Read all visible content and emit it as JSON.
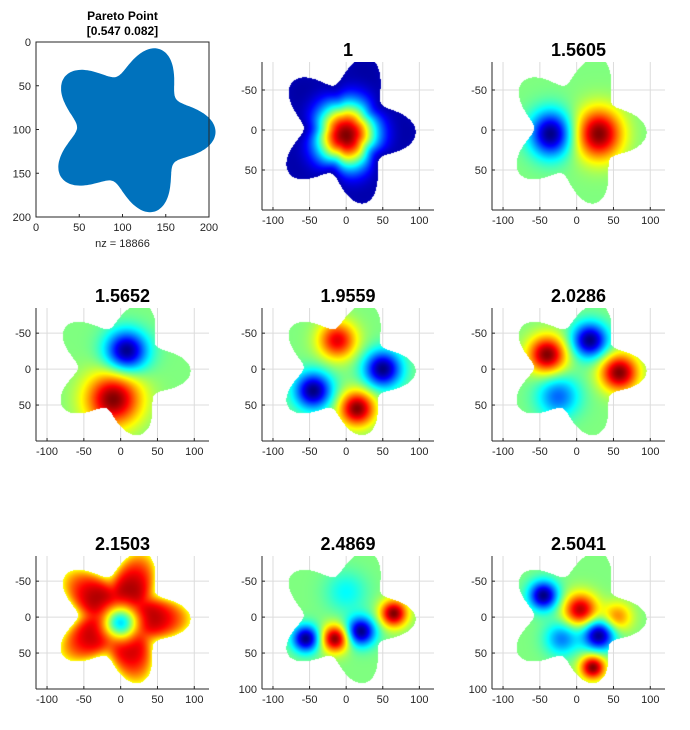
{
  "figure": {
    "background": "#ffffff",
    "axis_color": "#262626",
    "grid_color": "#dcdcdc",
    "colormap": "jet"
  },
  "chart_data": [
    {
      "type": "spy",
      "title_lines": [
        "Pareto Point",
        "[0.547 0.082]"
      ],
      "xlabel": "nz = 18866",
      "nz": 18866,
      "marker_color": "#0072BD",
      "xlim": [
        0,
        200
      ],
      "ylim": [
        0,
        200
      ],
      "y_reversed": true,
      "xticks": [
        0,
        50,
        100,
        150,
        200
      ],
      "yticks": [
        0,
        50,
        100,
        150,
        200
      ],
      "grid": false,
      "shape": {
        "type": "star",
        "arms": 5,
        "center": [
          110,
          100
        ],
        "inner_radius": 62,
        "outer_radius": 97,
        "phase_deg": 70
      }
    },
    {
      "type": "heatmap",
      "title": "1",
      "xlim": [
        -115,
        120
      ],
      "ylim": [
        -85,
        100
      ],
      "y_reversed": true,
      "xticks": [
        -100,
        -50,
        0,
        50,
        100
      ],
      "yticks": [
        -50,
        0,
        50
      ],
      "grid": true,
      "blobs": [
        {
          "x": 0,
          "y": 7,
          "s": 30,
          "v": 1
        }
      ],
      "base": 0,
      "edge_fade": true,
      "edge_value": 0.05
    },
    {
      "type": "heatmap",
      "title": "1.5605",
      "xlim": [
        -115,
        120
      ],
      "ylim": [
        -85,
        100
      ],
      "y_reversed": true,
      "xticks": [
        -100,
        -50,
        0,
        50,
        100
      ],
      "yticks": [
        -50,
        0,
        50
      ],
      "grid": true,
      "blobs": [
        {
          "x": -35,
          "y": 5,
          "s": 20,
          "v": -1
        },
        {
          "x": 30,
          "y": 5,
          "s": 22,
          "v": 1
        }
      ],
      "base": 0.5
    },
    {
      "type": "heatmap",
      "title": "1.5652",
      "xlim": [
        -115,
        120
      ],
      "ylim": [
        -85,
        100
      ],
      "y_reversed": true,
      "xticks": [
        -100,
        -50,
        0,
        50,
        100
      ],
      "yticks": [
        -50,
        0,
        50
      ],
      "grid": true,
      "blobs": [
        {
          "x": 8,
          "y": -25,
          "s": 20,
          "v": -1
        },
        {
          "x": -10,
          "y": 42,
          "s": 26,
          "v": 1
        }
      ],
      "base": 0.5
    },
    {
      "type": "heatmap",
      "title": "1.9559",
      "xlim": [
        -115,
        120
      ],
      "ylim": [
        -85,
        100
      ],
      "y_reversed": true,
      "xticks": [
        -100,
        -50,
        0,
        50,
        100
      ],
      "yticks": [
        -50,
        0,
        50
      ],
      "grid": true,
      "blobs": [
        {
          "x": -12,
          "y": -40,
          "s": 18,
          "v": 0.8
        },
        {
          "x": 50,
          "y": 0,
          "s": 18,
          "v": -1
        },
        {
          "x": 15,
          "y": 55,
          "s": 17,
          "v": 1
        },
        {
          "x": -45,
          "y": 30,
          "s": 18,
          "v": -1
        }
      ],
      "base": 0.5
    },
    {
      "type": "heatmap",
      "title": "2.0286",
      "xlim": [
        -115,
        120
      ],
      "ylim": [
        -85,
        100
      ],
      "y_reversed": true,
      "xticks": [
        -100,
        -50,
        0,
        50,
        100
      ],
      "yticks": [
        -50,
        0,
        50
      ],
      "grid": true,
      "blobs": [
        {
          "x": -40,
          "y": -20,
          "s": 18,
          "v": 1
        },
        {
          "x": 18,
          "y": -40,
          "s": 17,
          "v": -1
        },
        {
          "x": 58,
          "y": 5,
          "s": 18,
          "v": 1
        },
        {
          "x": -25,
          "y": 38,
          "s": 20,
          "v": -0.55
        }
      ],
      "base": 0.5
    },
    {
      "type": "heatmap",
      "title": "2.1503",
      "xlim": [
        -115,
        120
      ],
      "ylim": [
        -85,
        100
      ],
      "y_reversed": true,
      "xticks": [
        -100,
        -50,
        0,
        50,
        100
      ],
      "yticks": [
        -50,
        0,
        50
      ],
      "grid": true,
      "blobs": [
        {
          "x": 0,
          "y": 8,
          "s": 18,
          "v": -1.3
        }
      ],
      "base": 1,
      "edge_fade": true,
      "edge_value": 0.62
    },
    {
      "type": "heatmap",
      "title": "2.4869",
      "xlim": [
        -115,
        120
      ],
      "ylim": [
        -85,
        100
      ],
      "y_reversed": true,
      "xticks": [
        -100,
        -50,
        0,
        50,
        100
      ],
      "yticks": [
        -50,
        0,
        50,
        100
      ],
      "grid": true,
      "blobs": [
        {
          "x": -55,
          "y": 30,
          "s": 13,
          "v": -1
        },
        {
          "x": -15,
          "y": 30,
          "s": 13,
          "v": 1
        },
        {
          "x": 20,
          "y": 20,
          "s": 14,
          "v": -1
        },
        {
          "x": 65,
          "y": -5,
          "s": 13,
          "v": 1
        },
        {
          "x": 0,
          "y": -35,
          "s": 20,
          "v": -0.25
        }
      ],
      "base": 0.5
    },
    {
      "type": "heatmap",
      "title": "2.5041",
      "xlim": [
        -115,
        120
      ],
      "ylim": [
        -85,
        100
      ],
      "y_reversed": true,
      "xticks": [
        -100,
        -50,
        0,
        50,
        100
      ],
      "yticks": [
        -50,
        0,
        50,
        100
      ],
      "grid": true,
      "blobs": [
        {
          "x": -45,
          "y": -30,
          "s": 14,
          "v": -1
        },
        {
          "x": 5,
          "y": -10,
          "s": 16,
          "v": 0.9
        },
        {
          "x": 30,
          "y": 25,
          "s": 15,
          "v": -1
        },
        {
          "x": 22,
          "y": 70,
          "s": 12,
          "v": 1
        },
        {
          "x": -20,
          "y": 30,
          "s": 16,
          "v": -0.5
        },
        {
          "x": 55,
          "y": 0,
          "s": 14,
          "v": 0.5
        }
      ],
      "base": 0.5
    }
  ]
}
